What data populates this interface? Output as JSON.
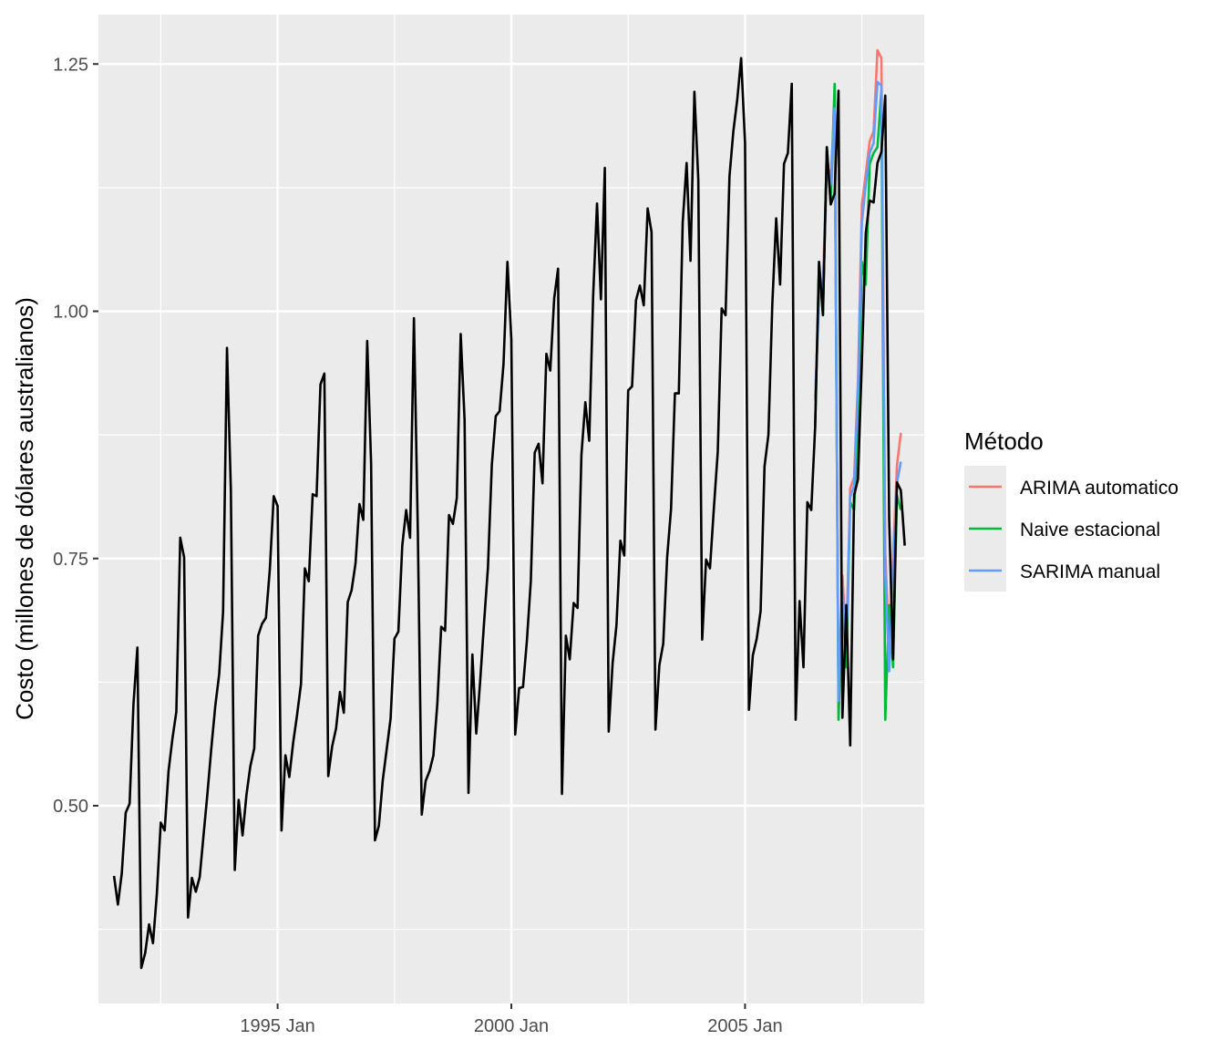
{
  "chart_data": {
    "type": "line",
    "title": "",
    "xlabel": "",
    "ylabel": "Costo (millones de dólares australianos)",
    "ylim": [
      0.3,
      1.3
    ],
    "yticks": [
      {
        "value": 0.5,
        "label": "0.50"
      },
      {
        "value": 0.75,
        "label": "0.75"
      },
      {
        "value": 1.0,
        "label": "1.00"
      },
      {
        "value": 1.25,
        "label": "1.25"
      }
    ],
    "xticks": [
      {
        "value": "1995-01",
        "label": "1995 Jan"
      },
      {
        "value": "2000-01",
        "label": "2000 Jan"
      },
      {
        "value": "2005-01",
        "label": "2005 Jan"
      }
    ],
    "xlim": [
      "1991-03",
      "2008-11"
    ],
    "grid": true,
    "legend": {
      "title": "Método",
      "position": "right"
    },
    "observed": {
      "start": "1991-07",
      "color": "#000000",
      "values": [
        0.429,
        0.4,
        0.432,
        0.493,
        0.502,
        0.603,
        0.66,
        0.336,
        0.351,
        0.38,
        0.361,
        0.411,
        0.483,
        0.475,
        0.535,
        0.568,
        0.595,
        0.771,
        0.751,
        0.387,
        0.427,
        0.413,
        0.428,
        0.471,
        0.513,
        0.559,
        0.601,
        0.633,
        0.696,
        0.963,
        0.819,
        0.435,
        0.506,
        0.47,
        0.511,
        0.54,
        0.558,
        0.672,
        0.684,
        0.69,
        0.739,
        0.813,
        0.803,
        0.475,
        0.551,
        0.529,
        0.564,
        0.592,
        0.623,
        0.74,
        0.727,
        0.815,
        0.813,
        0.926,
        0.937,
        0.53,
        0.56,
        0.578,
        0.615,
        0.594,
        0.706,
        0.718,
        0.745,
        0.805,
        0.789,
        0.97,
        0.846,
        0.465,
        0.48,
        0.526,
        0.557,
        0.588,
        0.669,
        0.676,
        0.763,
        0.799,
        0.771,
        0.993,
        0.777,
        0.491,
        0.525,
        0.535,
        0.551,
        0.603,
        0.681,
        0.677,
        0.794,
        0.785,
        0.811,
        0.977,
        0.89,
        0.513,
        0.653,
        0.573,
        0.626,
        0.685,
        0.741,
        0.845,
        0.894,
        0.899,
        0.947,
        1.05,
        0.972,
        0.572,
        0.619,
        0.62,
        0.667,
        0.727,
        0.857,
        0.866,
        0.826,
        0.957,
        0.94,
        1.013,
        1.043,
        0.512,
        0.672,
        0.648,
        0.705,
        0.7,
        0.855,
        0.908,
        0.869,
        1.015,
        1.109,
        1.012,
        1.145,
        0.575,
        0.644,
        0.683,
        0.768,
        0.753,
        0.92,
        0.924,
        1.011,
        1.026,
        1.006,
        1.104,
        1.08,
        0.577,
        0.642,
        0.664,
        0.751,
        0.8,
        0.917,
        0.917,
        1.09,
        1.15,
        1.051,
        1.222,
        1.133,
        0.668,
        0.749,
        0.74,
        0.801,
        0.858,
        1.003,
        0.996,
        1.136,
        1.182,
        1.214,
        1.256,
        1.17,
        0.597,
        0.652,
        0.669,
        0.697,
        0.843,
        0.875,
        1.007,
        1.094,
        1.027,
        1.149,
        1.16,
        1.23,
        0.587,
        0.707,
        0.64,
        0.807,
        0.799,
        0.883,
        1.05,
        0.996,
        1.166,
        1.108,
        1.119,
        1.223,
        0.589,
        0.703,
        0.561,
        0.814,
        0.83,
        0.95,
        1.079,
        1.112,
        1.11,
        1.15,
        1.161,
        1.218,
        0.79,
        0.648,
        0.827,
        0.819,
        0.763
      ]
    },
    "series": [
      {
        "name": "ARIMA automatico",
        "color": "#F8766D",
        "start": "2006-07",
        "values": [
          0.913,
          1.02,
          1.03,
          1.152,
          1.133,
          1.212,
          0.612,
          0.733,
          0.666,
          0.821,
          0.832,
          0.93,
          1.108,
          1.139,
          1.172,
          1.182,
          1.264,
          1.256,
          0.757,
          0.656,
          0.752,
          0.844,
          0.877
        ]
      },
      {
        "name": "Naive estacional",
        "color": "#00BA38",
        "start": "2006-07",
        "values": [
          0.883,
          1.05,
          0.996,
          1.166,
          1.108,
          1.23,
          0.587,
          0.707,
          0.64,
          0.807,
          0.799,
          0.883,
          1.05,
          1.027,
          1.149,
          1.16,
          1.166,
          1.223,
          0.587,
          0.703,
          0.64,
          0.814,
          0.799
        ]
      },
      {
        "name": "SARIMA manual",
        "color": "#619CFF",
        "start": "2006-07",
        "values": [
          0.91,
          1.012,
          1.022,
          1.14,
          1.128,
          1.205,
          0.606,
          0.72,
          0.66,
          0.812,
          0.824,
          0.92,
          1.09,
          1.128,
          1.16,
          1.17,
          1.232,
          1.228,
          0.735,
          0.636,
          0.74,
          0.826,
          0.848
        ]
      }
    ]
  }
}
